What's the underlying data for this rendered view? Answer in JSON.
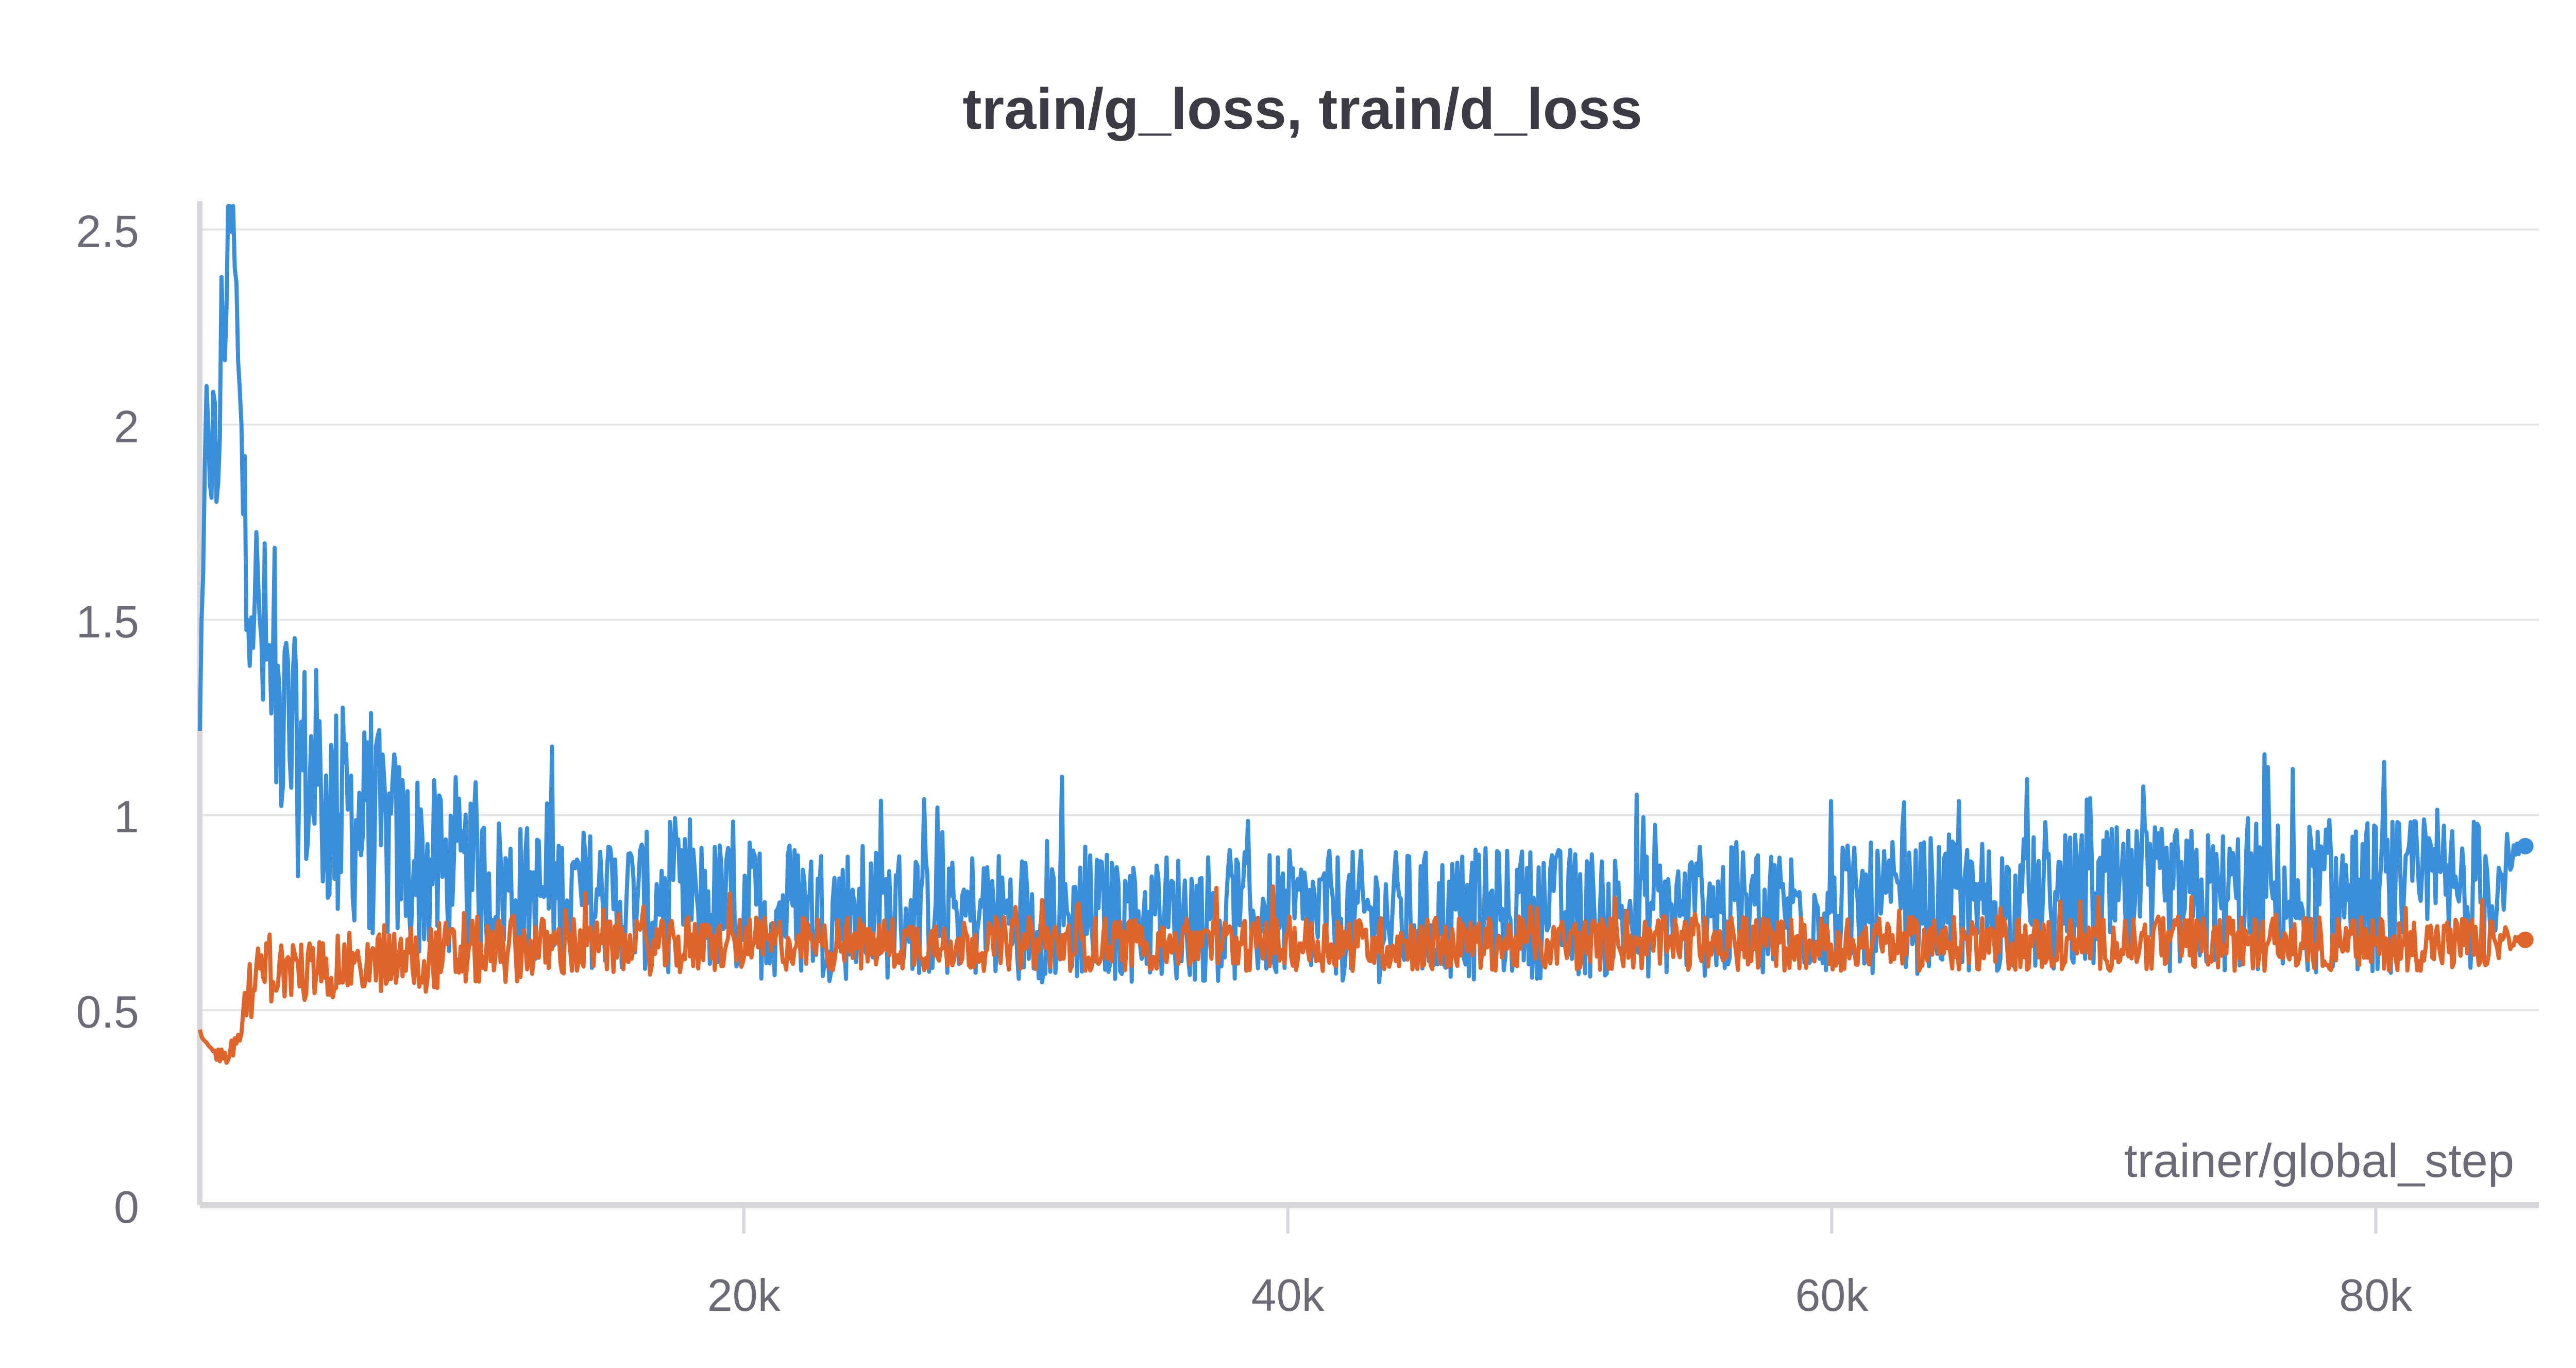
{
  "chart_data": {
    "type": "line",
    "title": "train/g_loss, train/d_loss",
    "xlabel": "trainer/global_step",
    "ylabel": "",
    "xlim": [
      0,
      86000
    ],
    "ylim": [
      0,
      2.56
    ],
    "x_ticks": [
      {
        "value": 20000,
        "label": "20k"
      },
      {
        "value": 40000,
        "label": "40k"
      },
      {
        "value": 60000,
        "label": "60k"
      },
      {
        "value": 80000,
        "label": "80k"
      }
    ],
    "y_ticks": [
      {
        "value": 0,
        "label": "0"
      },
      {
        "value": 0.5,
        "label": "0.5"
      },
      {
        "value": 1,
        "label": "1"
      },
      {
        "value": 1.5,
        "label": "1.5"
      },
      {
        "value": 2,
        "label": "2"
      },
      {
        "value": 2.5,
        "label": "2.5"
      }
    ],
    "grid": true,
    "legend": "none",
    "series": [
      {
        "key": "g_loss",
        "color": "#3a8fdb",
        "x": [
          0,
          300,
          600,
          900,
          1200,
          1500,
          1800,
          2100,
          2400,
          2700,
          3000,
          3500,
          4000,
          4500,
          5000,
          5500,
          6000,
          6500,
          7000,
          7500,
          8000,
          8500,
          9000,
          9500,
          10000,
          11000,
          12000,
          13000,
          14000,
          15000,
          16000,
          18000,
          20000,
          22000,
          24000,
          26000,
          28000,
          30000,
          32000,
          34000,
          36000,
          38000,
          40000,
          42000,
          44000,
          46000,
          48000,
          50000,
          52000,
          54000,
          56000,
          58000,
          60000,
          62000,
          64000,
          66000,
          68000,
          70000,
          72000,
          74000,
          76000,
          78000,
          80000,
          82000,
          84000,
          85500
        ],
        "y": [
          1.2,
          2.1,
          1.8,
          2.35,
          2.56,
          1.9,
          1.7,
          1.5,
          1.4,
          1.3,
          1.25,
          1.15,
          1.1,
          1.05,
          1.0,
          1.0,
          0.98,
          0.95,
          0.92,
          0.9,
          0.88,
          0.86,
          0.85,
          0.84,
          0.83,
          0.82,
          0.8,
          0.8,
          0.79,
          0.78,
          0.78,
          0.77,
          0.76,
          0.76,
          0.75,
          0.75,
          0.75,
          0.74,
          0.74,
          0.74,
          0.74,
          0.74,
          0.74,
          0.74,
          0.74,
          0.74,
          0.75,
          0.75,
          0.75,
          0.75,
          0.75,
          0.76,
          0.76,
          0.76,
          0.77,
          0.77,
          0.77,
          0.78,
          0.78,
          0.78,
          0.79,
          0.79,
          0.79,
          0.8,
          0.8,
          0.92
        ],
        "spread": [
          0.05,
          0.3,
          0.3,
          0.3,
          0.3,
          0.3,
          0.3,
          0.3,
          0.32,
          0.32,
          0.32,
          0.3,
          0.3,
          0.3,
          0.3,
          0.28,
          0.28,
          0.28,
          0.27,
          0.26,
          0.25,
          0.24,
          0.22,
          0.21,
          0.2,
          0.19,
          0.18,
          0.18,
          0.18,
          0.18,
          0.18,
          0.18,
          0.18,
          0.18,
          0.18,
          0.17,
          0.17,
          0.17,
          0.17,
          0.17,
          0.17,
          0.17,
          0.17,
          0.17,
          0.17,
          0.17,
          0.17,
          0.17,
          0.17,
          0.17,
          0.17,
          0.17,
          0.17,
          0.17,
          0.18,
          0.18,
          0.18,
          0.19,
          0.19,
          0.19,
          0.2,
          0.2,
          0.2,
          0.2,
          0.2,
          0.0
        ],
        "last_value": 0.92
      },
      {
        "key": "d_loss",
        "color": "#e0652b",
        "x": [
          0,
          300,
          600,
          900,
          1200,
          1500,
          1800,
          2100,
          2400,
          2700,
          3000,
          3500,
          4000,
          4500,
          5000,
          5500,
          6000,
          6500,
          7000,
          7500,
          8000,
          8500,
          9000,
          9500,
          10000,
          11000,
          12000,
          13000,
          14000,
          15000,
          16000,
          18000,
          20000,
          22000,
          24000,
          26000,
          28000,
          30000,
          32000,
          34000,
          36000,
          38000,
          40000,
          42000,
          44000,
          46000,
          48000,
          50000,
          52000,
          54000,
          56000,
          58000,
          60000,
          62000,
          64000,
          66000,
          68000,
          70000,
          72000,
          74000,
          76000,
          78000,
          80000,
          82000,
          84000,
          85500
        ],
        "y": [
          0.45,
          0.4,
          0.39,
          0.38,
          0.4,
          0.45,
          0.55,
          0.58,
          0.6,
          0.6,
          0.6,
          0.6,
          0.6,
          0.61,
          0.61,
          0.62,
          0.62,
          0.62,
          0.63,
          0.63,
          0.63,
          0.64,
          0.64,
          0.64,
          0.65,
          0.65,
          0.66,
          0.66,
          0.66,
          0.66,
          0.66,
          0.66,
          0.67,
          0.67,
          0.67,
          0.67,
          0.67,
          0.67,
          0.67,
          0.67,
          0.67,
          0.67,
          0.67,
          0.67,
          0.67,
          0.67,
          0.67,
          0.67,
          0.67,
          0.67,
          0.67,
          0.67,
          0.67,
          0.67,
          0.67,
          0.67,
          0.67,
          0.67,
          0.67,
          0.67,
          0.67,
          0.67,
          0.67,
          0.67,
          0.67,
          0.68
        ],
        "spread": [
          0.02,
          0.02,
          0.02,
          0.02,
          0.03,
          0.06,
          0.08,
          0.08,
          0.08,
          0.08,
          0.08,
          0.08,
          0.08,
          0.08,
          0.08,
          0.08,
          0.08,
          0.08,
          0.08,
          0.09,
          0.09,
          0.09,
          0.09,
          0.09,
          0.09,
          0.09,
          0.08,
          0.08,
          0.08,
          0.07,
          0.07,
          0.07,
          0.07,
          0.07,
          0.07,
          0.07,
          0.07,
          0.07,
          0.07,
          0.07,
          0.07,
          0.07,
          0.07,
          0.07,
          0.07,
          0.07,
          0.07,
          0.07,
          0.07,
          0.07,
          0.07,
          0.07,
          0.07,
          0.07,
          0.07,
          0.07,
          0.07,
          0.07,
          0.07,
          0.07,
          0.07,
          0.07,
          0.07,
          0.07,
          0.07,
          0.0
        ],
        "last_value": 0.68
      }
    ]
  }
}
